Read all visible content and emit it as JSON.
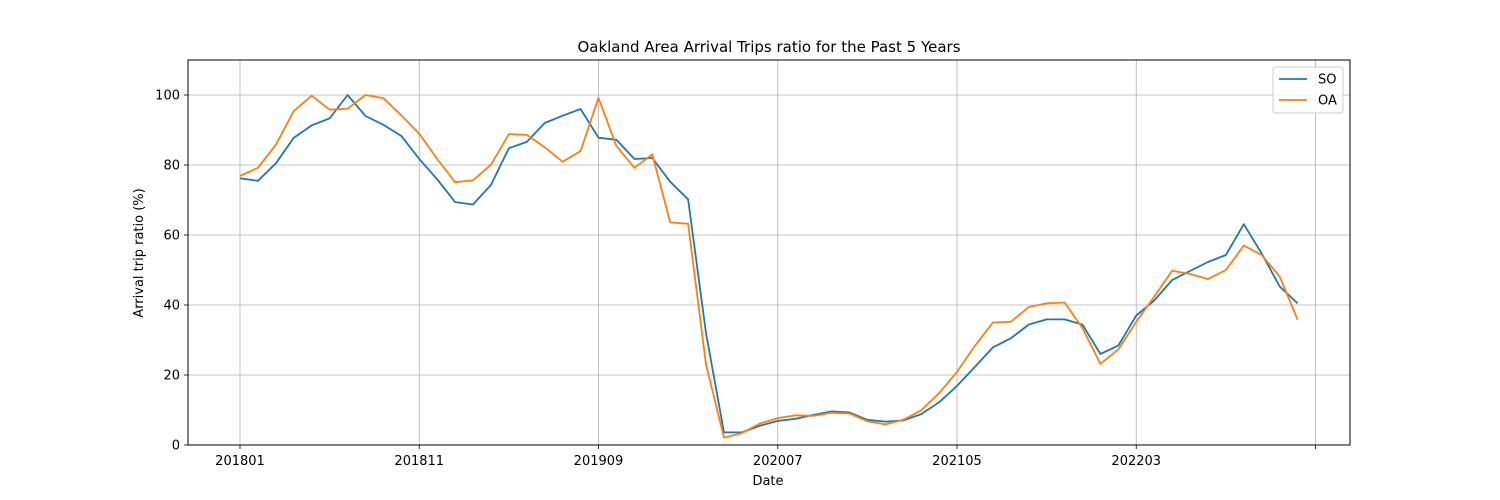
{
  "chart_data": {
    "type": "line",
    "title": "Oakland Area Arrival Trips ratio for the Past 5 Years",
    "xlabel": "Date",
    "ylabel": "Arrival trip ratio (%)",
    "x": [
      "201801",
      "201802",
      "201803",
      "201804",
      "201805",
      "201806",
      "201807",
      "201808",
      "201809",
      "201810",
      "201811",
      "201812",
      "201901",
      "201902",
      "201903",
      "201904",
      "201905",
      "201906",
      "201907",
      "201908",
      "201909",
      "201910",
      "201911",
      "201912",
      "202001",
      "202002",
      "202003",
      "202004",
      "202005",
      "202006",
      "202007",
      "202008",
      "202009",
      "202010",
      "202011",
      "202012",
      "202101",
      "202102",
      "202103",
      "202104",
      "202105",
      "202106",
      "202107",
      "202108",
      "202109",
      "202110",
      "202111",
      "202112",
      "202201",
      "202202",
      "202203",
      "202204",
      "202205",
      "202206",
      "202207",
      "202208",
      "202209",
      "202210",
      "202211",
      "202212"
    ],
    "x_ticks": [
      "201801",
      "201811",
      "201909",
      "202007",
      "202105",
      "202203",
      ""
    ],
    "y_ticks": [
      "0",
      "20",
      "40",
      "60",
      "80",
      "100"
    ],
    "ylim": [
      0,
      110
    ],
    "grid": true,
    "legend": "top-right",
    "series": [
      {
        "name": "SO",
        "color": "#1f77b4",
        "values": [
          76.2,
          75.5,
          80.5,
          87.8,
          91.3,
          93.3,
          100.0,
          94.0,
          91.5,
          88.3,
          81.7,
          75.9,
          69.4,
          68.7,
          74.3,
          84.8,
          86.6,
          92.0,
          94.1,
          96.0,
          87.8,
          87.2,
          81.7,
          82.0,
          75.2,
          70.2,
          32.0,
          3.6,
          3.6,
          5.5,
          6.9,
          7.5,
          8.6,
          9.6,
          9.3,
          7.2,
          6.7,
          7.0,
          8.8,
          12.2,
          16.9,
          22.3,
          27.9,
          30.5,
          34.4,
          35.9,
          35.9,
          34.4,
          26.0,
          28.4,
          37.0,
          41.3,
          47.1,
          49.7,
          52.3,
          54.3,
          63.1,
          54.7,
          45.3,
          40.5
        ]
      },
      {
        "name": "OA",
        "color": "#ff7f0e",
        "values": [
          76.9,
          79.2,
          85.8,
          95.4,
          99.8,
          95.8,
          96.1,
          100.0,
          99.1,
          94.2,
          88.9,
          81.7,
          75.1,
          75.6,
          80.1,
          88.8,
          88.6,
          85.1,
          80.9,
          84.0,
          99.2,
          85.4,
          79.2,
          83.0,
          63.6,
          63.2,
          23.0,
          2.1,
          3.4,
          6.1,
          7.7,
          8.5,
          8.3,
          9.2,
          9.0,
          6.8,
          5.9,
          7.2,
          9.9,
          14.8,
          20.9,
          28.3,
          35.0,
          35.2,
          39.4,
          40.5,
          40.7,
          33.4,
          23.2,
          27.3,
          35.2,
          42.4,
          49.8,
          48.9,
          47.4,
          50.0,
          57.0,
          54.3,
          48.1,
          35.8
        ]
      }
    ]
  }
}
